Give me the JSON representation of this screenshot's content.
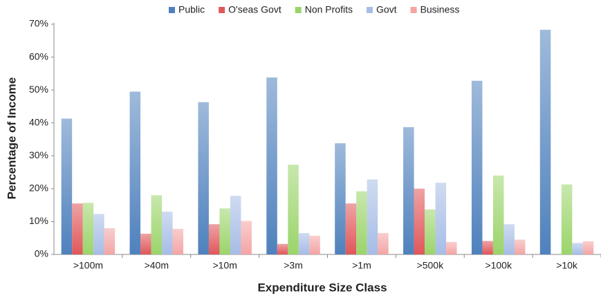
{
  "chart_data": {
    "type": "bar",
    "x_label": "Expenditure Size Class",
    "y_label": "Percentage of Income",
    "categories": [
      ">100m",
      ">40m",
      ">10m",
      ">3m",
      ">1m",
      ">500k",
      ">100k",
      ">10k"
    ],
    "series": [
      {
        "name": "Public",
        "color": "#4f81bd",
        "values": [
          41.3,
          49.5,
          46.3,
          53.8,
          33.8,
          38.7,
          52.8,
          68.3
        ]
      },
      {
        "name": "O'seas Govt",
        "color": "#e0575a",
        "values": [
          15.5,
          6.3,
          9.2,
          3.2,
          15.5,
          20,
          4.1,
          0
        ]
      },
      {
        "name": "Non Profits",
        "color": "#9bd46a",
        "values": [
          15.7,
          18,
          14,
          27.3,
          19.2,
          13.7,
          24,
          21.3
        ]
      },
      {
        "name": "Govt",
        "color": "#a7bde6",
        "values": [
          12.3,
          13,
          17.8,
          6.5,
          22.8,
          21.8,
          9.2,
          3.5
        ]
      },
      {
        "name": "Business",
        "color": "#f4a5a5",
        "values": [
          8,
          7.8,
          10.2,
          5.7,
          6.5,
          3.8,
          4.5,
          4
        ]
      }
    ],
    "ylim": [
      0,
      70
    ],
    "yticks": [
      {
        "value": 0,
        "label": "0%"
      },
      {
        "value": 10,
        "label": "10%"
      },
      {
        "value": 20,
        "label": "20%"
      },
      {
        "value": 30,
        "label": "30%"
      },
      {
        "value": 40,
        "label": "40%"
      },
      {
        "value": 50,
        "label": "50%"
      },
      {
        "value": 60,
        "label": "60%"
      },
      {
        "value": 70,
        "label": "70%"
      }
    ],
    "grid": false,
    "legend": "top"
  }
}
